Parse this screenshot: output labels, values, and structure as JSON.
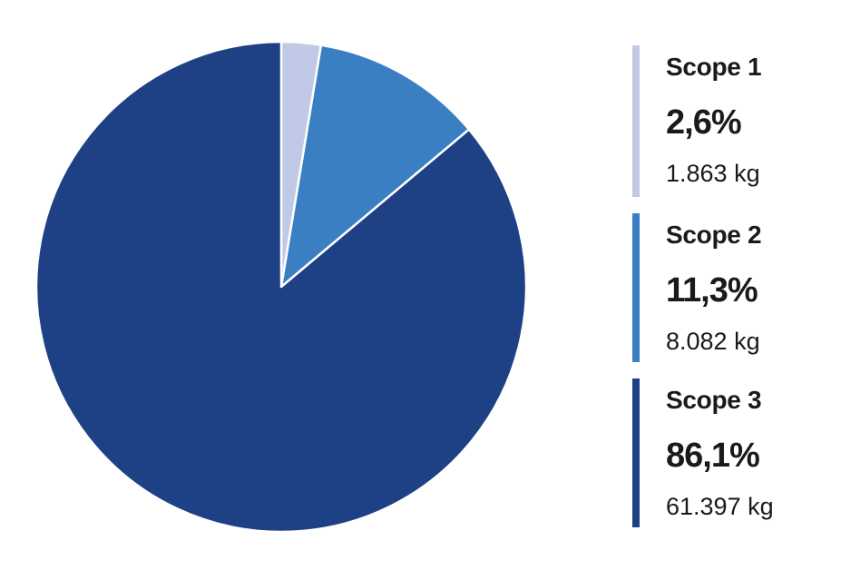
{
  "chart_data": {
    "type": "pie",
    "slices": [
      {
        "label": "Scope 1",
        "percent_label": "2,6%",
        "value": 2.6,
        "amount_label": "1.863 kg",
        "color": "#c0c9e6"
      },
      {
        "label": "Scope 2",
        "percent_label": "11,3%",
        "value": 11.3,
        "amount_label": "8.082 kg",
        "color": "#3b7fc3"
      },
      {
        "label": "Scope 3",
        "percent_label": "86,1%",
        "value": 86.1,
        "amount_label": "61.397 kg",
        "color": "#1e4186"
      }
    ],
    "start_angle": "12 o'clock",
    "direction": "clockwise",
    "legend_position": "right"
  }
}
